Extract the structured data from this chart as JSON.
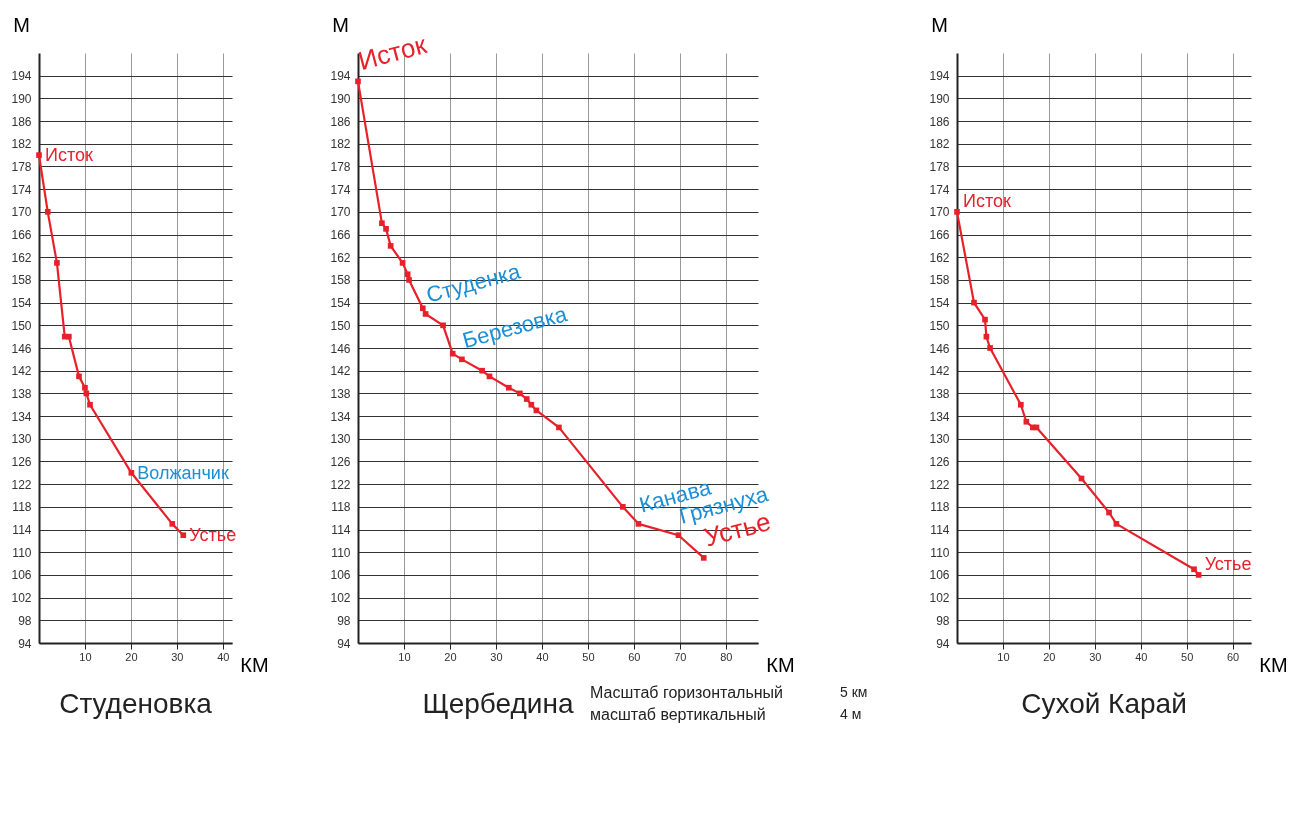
{
  "chart_data": [
    {
      "type": "line",
      "title": "Студеновка",
      "xlabel": "КМ",
      "ylabel": "М",
      "x": [
        0,
        1.9,
        3.9,
        5.6,
        6.5,
        8.7,
        10,
        10.3,
        11.1,
        20.1,
        29,
        31.4
      ],
      "series": [
        {
          "color": "#e8202a",
          "values": [
            180,
            170,
            161,
            148,
            148,
            141,
            139,
            138,
            136,
            124,
            115,
            113
          ]
        }
      ],
      "xlim": [
        0,
        42
      ],
      "xticks": [
        10,
        20,
        30,
        40
      ],
      "ylim": [
        94,
        198
      ],
      "yticks": [
        94,
        98,
        102,
        106,
        110,
        114,
        118,
        122,
        126,
        130,
        134,
        138,
        142,
        146,
        150,
        154,
        158,
        162,
        166,
        170,
        174,
        178,
        182,
        186,
        190,
        194
      ],
      "grid": true,
      "marker": "square",
      "line_style": "solid",
      "annotations": [
        {
          "text": "Исток",
          "x": 0,
          "y": 180
        },
        {
          "text": "Волжанчик",
          "x": 20.1,
          "y": 124
        },
        {
          "text": "Устье",
          "x": 31.4,
          "y": 113
        }
      ]
    },
    {
      "type": "line",
      "title": "Щербедина",
      "xlabel": "КМ",
      "ylabel": "М",
      "x": [
        0,
        5.2,
        6.1,
        7.1,
        9.7,
        10.8,
        11.1,
        14.1,
        14.7,
        18.5,
        20.6,
        22.6,
        27,
        28.6,
        32.8,
        35.2,
        36.7,
        37.7,
        38.8,
        43.7,
        57.6,
        61,
        69.7,
        75.2
      ],
      "series": [
        {
          "color": "#e8202a",
          "values": [
            193,
            168,
            167,
            164,
            161,
            159,
            158,
            153,
            152,
            150,
            145,
            144,
            142,
            141,
            139,
            138,
            137,
            136,
            135,
            132,
            118,
            115,
            113,
            109
          ]
        }
      ],
      "xlim": [
        0,
        87
      ],
      "xticks": [
        10,
        20,
        30,
        40,
        50,
        60,
        70,
        80
      ],
      "ylim": [
        94,
        198
      ],
      "yticks": [
        94,
        98,
        102,
        106,
        110,
        114,
        118,
        122,
        126,
        130,
        134,
        138,
        142,
        146,
        150,
        154,
        158,
        162,
        166,
        170,
        174,
        178,
        182,
        186,
        190,
        194
      ],
      "grid": true,
      "marker": "square",
      "line_style": "solid",
      "annotations": [
        {
          "text": "Исток",
          "x": 0,
          "y": 193
        },
        {
          "text": "Студенка",
          "x": 14.7,
          "y": 152
        },
        {
          "text": "Березовка",
          "x": 22.6,
          "y": 144
        },
        {
          "text": "Канава",
          "x": 61,
          "y": 115
        },
        {
          "text": "Грязнуха",
          "x": 69.7,
          "y": 113
        },
        {
          "text": "Устье",
          "x": 75.2,
          "y": 109
        },
        "Масштаб горизонтальный",
        "масштаб вертикальный",
        "5 км",
        "4 м"
      ]
    },
    {
      "type": "line",
      "title": "Сухой Карай",
      "xlabel": "КМ",
      "ylabel": "М",
      "x": [
        0,
        3.7,
        6.1,
        6.4,
        7.2,
        13.9,
        15.1,
        16.5,
        17.3,
        27.1,
        33.1,
        34.7,
        51.6,
        52.6
      ],
      "series": [
        {
          "color": "#e8202a",
          "values": [
            170,
            154,
            151,
            148,
            146,
            136,
            133,
            132,
            132,
            123,
            117,
            115,
            107,
            106
          ]
        }
      ],
      "xlim": [
        0,
        64
      ],
      "xticks": [
        10,
        20,
        30,
        40,
        50,
        60
      ],
      "ylim": [
        94,
        198
      ],
      "yticks": [
        94,
        98,
        102,
        106,
        110,
        114,
        118,
        122,
        126,
        130,
        134,
        138,
        142,
        146,
        150,
        154,
        158,
        162,
        166,
        170,
        174,
        178,
        182,
        186,
        190,
        194
      ],
      "grid": true,
      "marker": "square",
      "line_style": "solid",
      "annotations": [
        {
          "text": "Исток",
          "x": 0,
          "y": 170
        },
        {
          "text": "Устье",
          "x": 52.6,
          "y": 106
        }
      ]
    }
  ]
}
